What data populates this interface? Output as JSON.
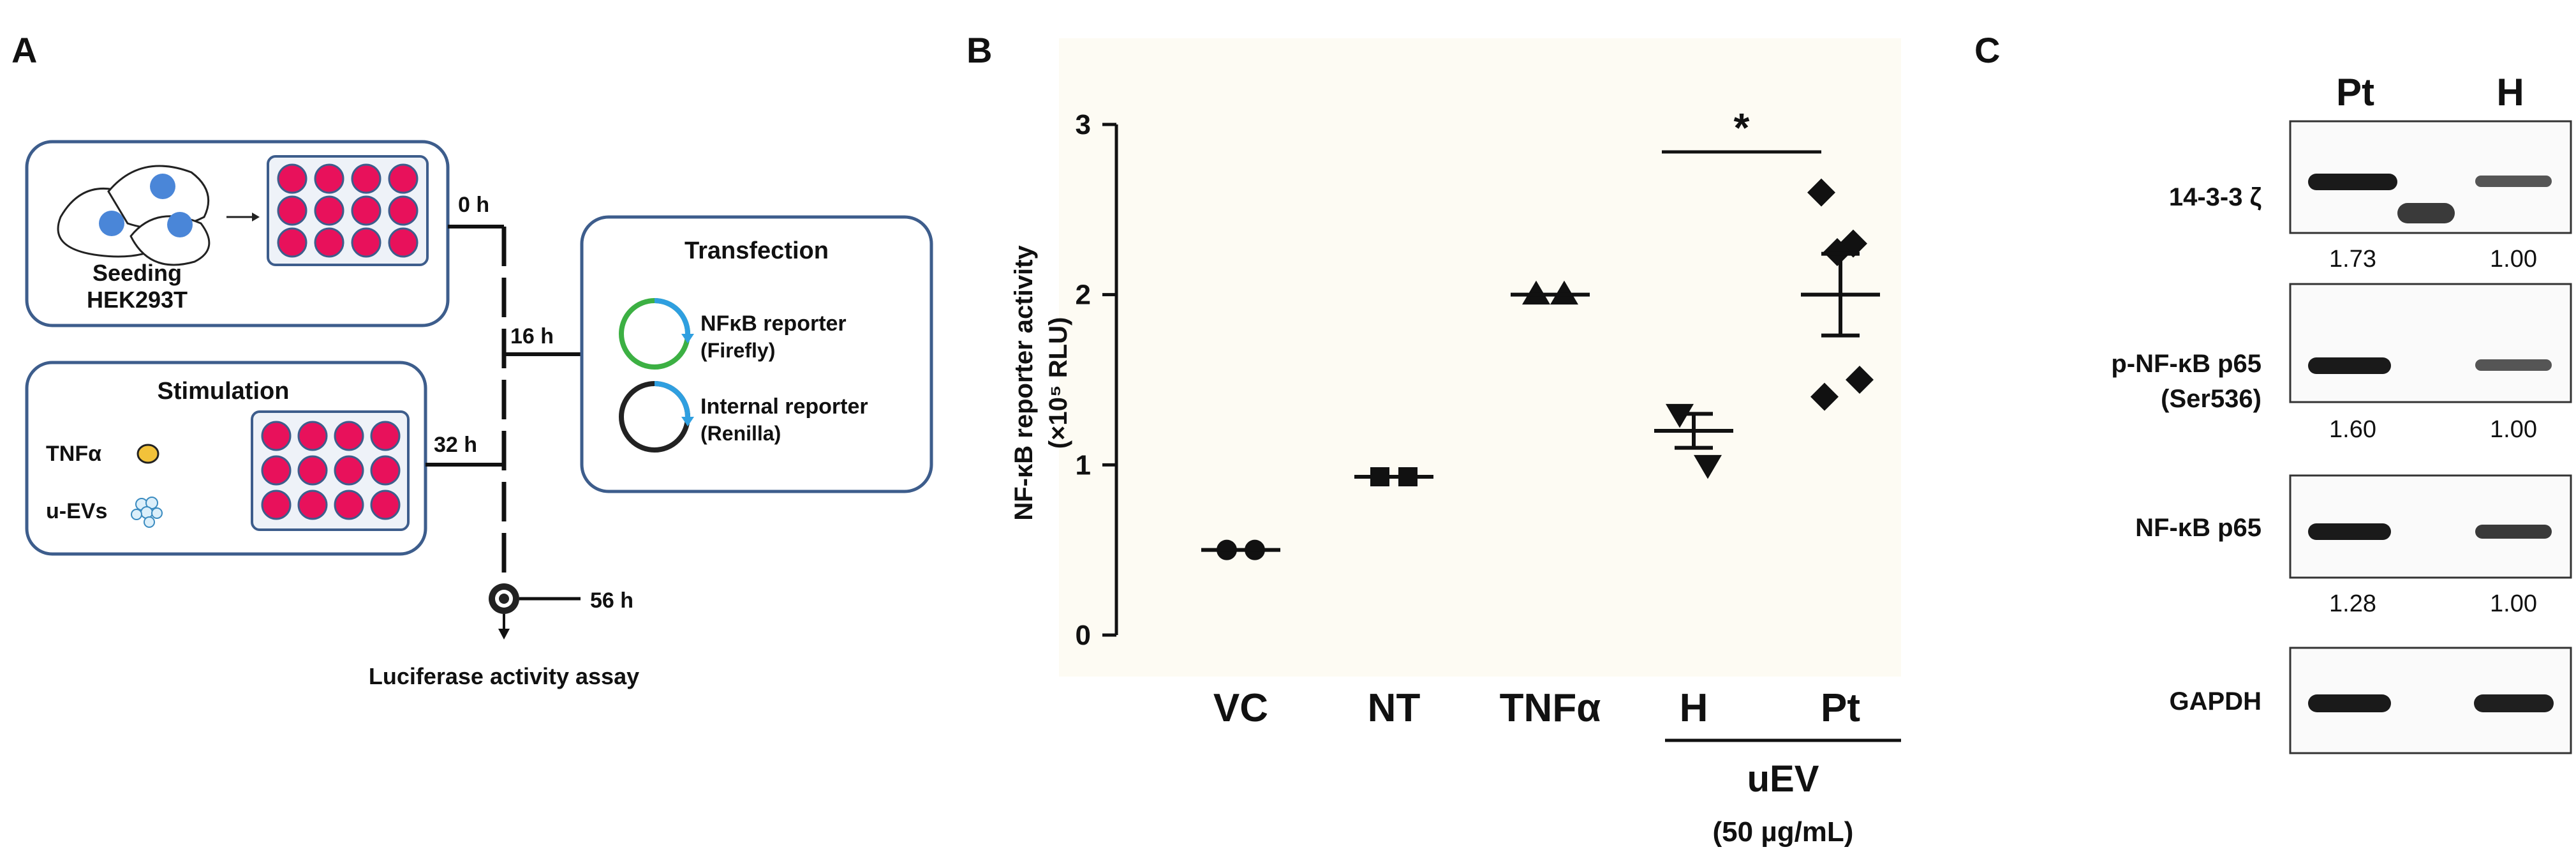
{
  "panel_labels": {
    "a": "A",
    "b": "B",
    "c": "C"
  },
  "panel_a": {
    "seeding_label": "Seeding",
    "cell_line": "HEK293T",
    "stimulation_title": "Stimulation",
    "stim_tnf": "TNFα",
    "stim_uev": "u-EVs",
    "transfection_title": "Transfection",
    "reporter1_line1": "NFκB reporter",
    "reporter1_line2": "(Firefly)",
    "reporter2_line1": "Internal reporter",
    "reporter2_line2": "(Renilla)",
    "time_0": "0 h",
    "time_16": "16 h",
    "time_32": "32 h",
    "time_56": "56 h",
    "assay_label": "Luciferase activity assay",
    "colors": {
      "cell_nucleus": "#4a86d8",
      "well": "#e8115b",
      "box_border": "#3d5d8c",
      "plate_bg": "#eef2f8",
      "tnf_dot": "#f2c23a",
      "firefly_arc": "#3cb043",
      "renilla_arc": "#2f9fe0"
    }
  },
  "chart_data": {
    "type": "scatter",
    "ylabel_line1": "NF-κB reporter activity",
    "ylabel_line2": "(×10⁵ RLU)",
    "ylim": [
      0,
      3
    ],
    "yticks": [
      "0",
      "1",
      "2",
      "3"
    ],
    "categories": [
      "VC",
      "NT",
      "TNFα",
      "H",
      "Pt"
    ],
    "group_label": "uEV",
    "group_sublabel": "(50 µg/mL)",
    "significance": "*",
    "series": [
      {
        "name": "VC",
        "marker": "circle",
        "values": [
          0.5,
          0.5
        ],
        "mean": 0.5,
        "sem": 0
      },
      {
        "name": "NT",
        "marker": "square",
        "values": [
          0.93,
          0.93
        ],
        "mean": 0.93,
        "sem": 0
      },
      {
        "name": "TNFα",
        "marker": "triangle-up",
        "values": [
          2.0,
          2.0
        ],
        "mean": 2.0,
        "sem": 0
      },
      {
        "name": "H",
        "marker": "triangle-down",
        "values": [
          1.3,
          1.0
        ],
        "mean": 1.2,
        "sem": 0.1
      },
      {
        "name": "Pt",
        "marker": "diamond",
        "values": [
          2.6,
          2.3,
          2.25,
          1.5,
          1.4
        ],
        "mean": 2.0,
        "sem": 0.24
      }
    ],
    "colors": {
      "background": "#fdfbf3",
      "marker": "#111111"
    }
  },
  "panel_c": {
    "lanes": [
      "Pt",
      "H"
    ],
    "blots": [
      {
        "label": "14-3-3 ζ",
        "values": [
          "1.73",
          "1.00"
        ]
      },
      {
        "label": "p-NF-κB p65",
        "label2": "(Ser536)",
        "values": [
          "1.60",
          "1.00"
        ]
      },
      {
        "label": "NF-κB p65",
        "values": [
          "1.28",
          "1.00"
        ]
      },
      {
        "label": "GAPDH"
      }
    ]
  }
}
